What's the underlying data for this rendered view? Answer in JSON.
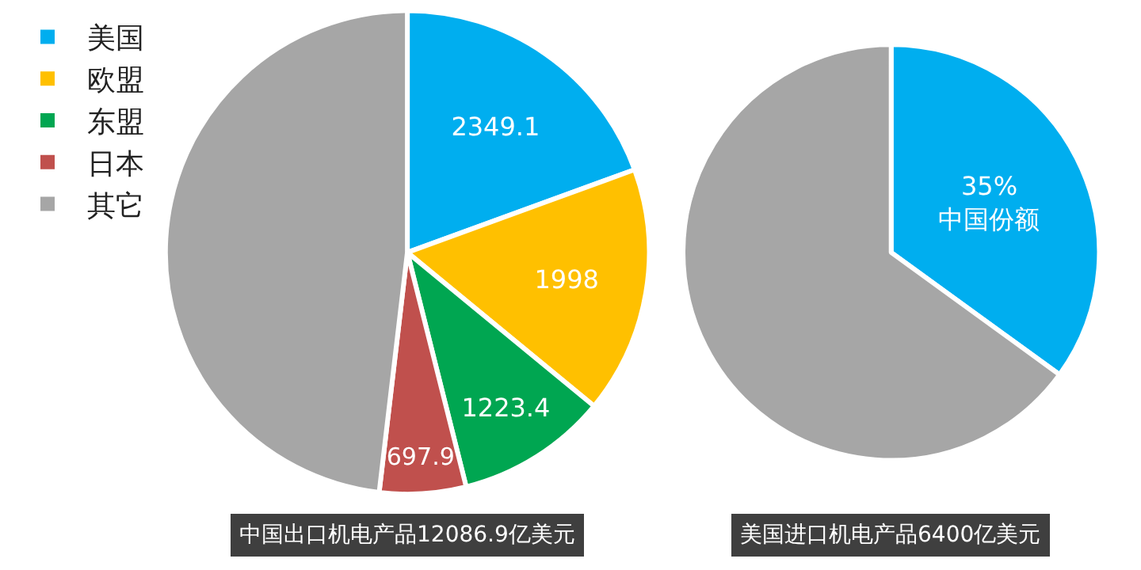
{
  "chart_data": [
    {
      "type": "pie",
      "title": "中国出口机电产品12086.9亿美元",
      "categories": [
        "美国",
        "欧盟",
        "东盟",
        "日本",
        "其它"
      ],
      "values": [
        2349.1,
        1998,
        1223.4,
        697.9,
        5818.5
      ],
      "colors": [
        "#00aeef",
        "#ffc000",
        "#00a651",
        "#c0504d",
        "#a6a6a6"
      ],
      "value_labels": [
        "2349.1",
        "1998",
        "1223.4",
        "697.9",
        null
      ],
      "legend": "left"
    },
    {
      "type": "pie",
      "title": "美国进口机电产品6400亿美元",
      "categories": [
        "中国份额",
        null
      ],
      "values": [
        35,
        65
      ],
      "colors": [
        "#00aeef",
        "#a6a6a6"
      ],
      "value_labels": [
        "35%",
        null
      ],
      "legend": false
    }
  ]
}
